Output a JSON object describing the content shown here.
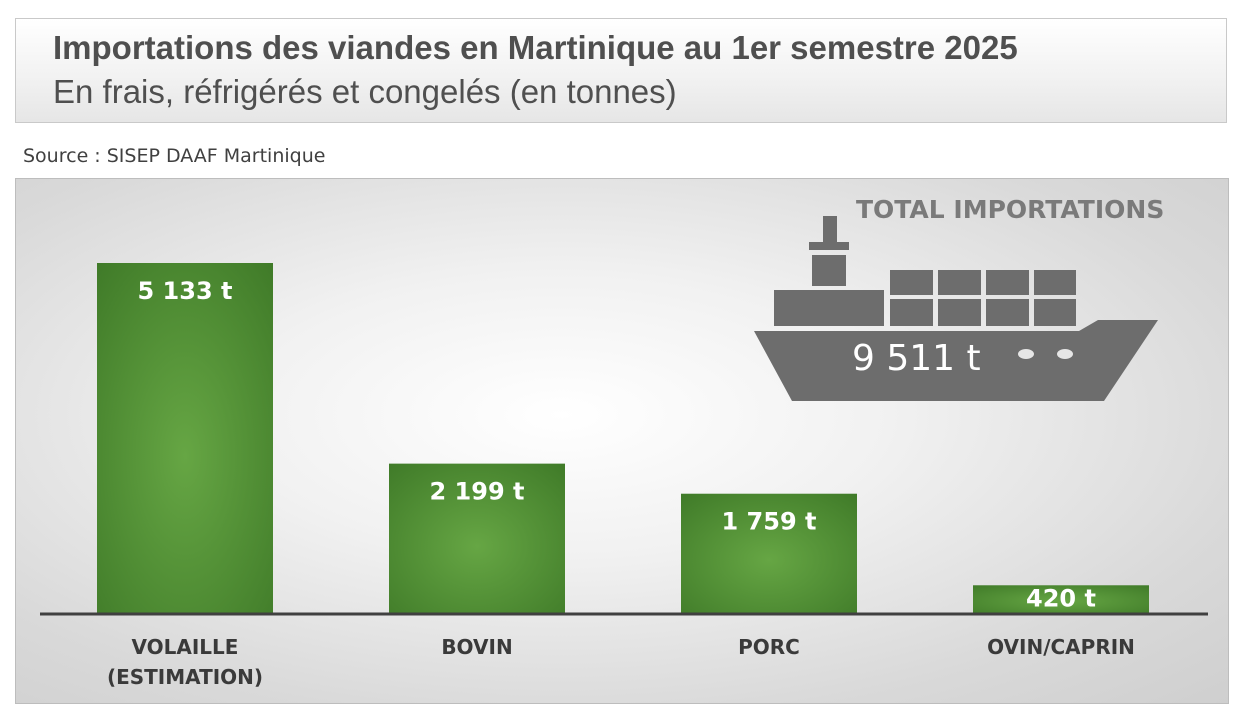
{
  "header": {
    "title": "Importations des viandes en Martinique au 1er semestre 2025",
    "subtitle": "En frais, réfrigérés et congelés (en tonnes)"
  },
  "source": "Source : SISEP DAAF Martinique",
  "total": {
    "label": "TOTAL IMPORTATIONS",
    "value_text": "9 511 t",
    "value": 9511
  },
  "colors": {
    "bar": "#5a9a3a",
    "bar_dark": "#3f7a28",
    "ship": "#6d6d6d",
    "axis": "#404040"
  },
  "chart_data": {
    "type": "bar",
    "title": "Importations des viandes en Martinique au 1er semestre 2025",
    "subtitle": "En frais, réfrigérés et congelés (en tonnes)",
    "unit": "t",
    "categories": [
      [
        "VOLAILLE",
        "(ESTIMATION)"
      ],
      [
        "BOVIN"
      ],
      [
        "PORC"
      ],
      [
        "OVIN/CAPRIN"
      ]
    ],
    "values": [
      5133,
      2199,
      1759,
      420
    ],
    "value_labels": [
      "5 133 t",
      "2 199 t",
      "1 759 t",
      "420 t"
    ],
    "grid": false,
    "legend": "none"
  }
}
